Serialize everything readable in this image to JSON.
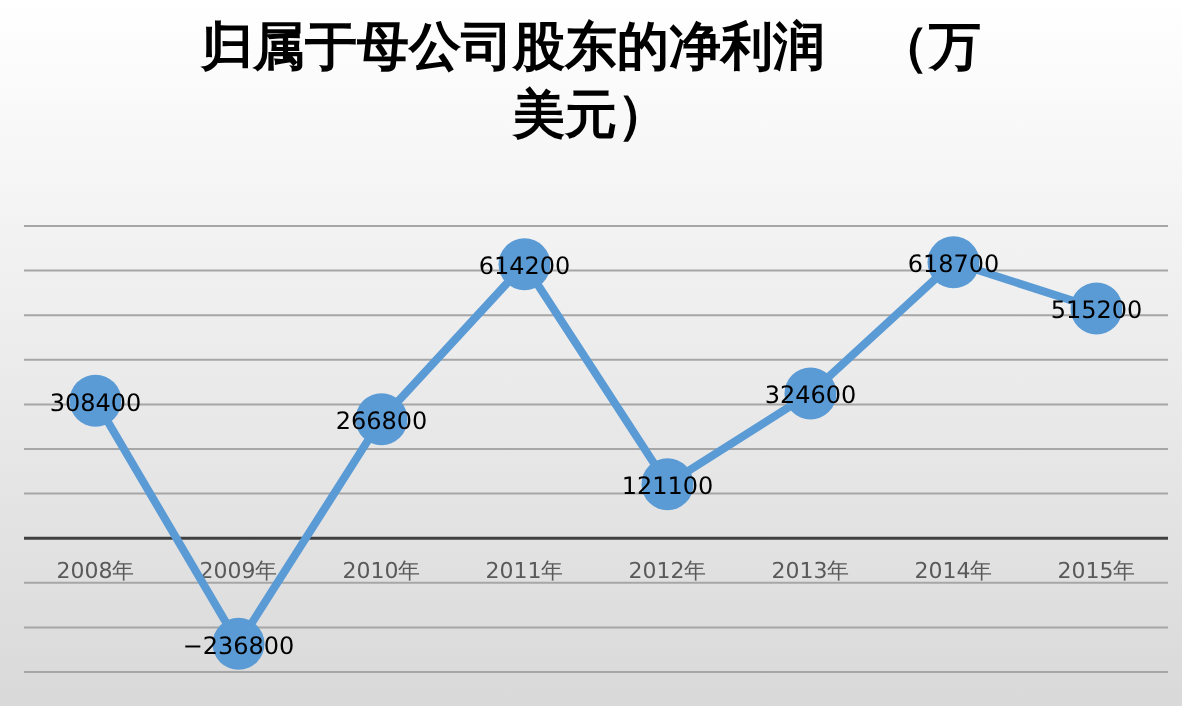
{
  "chart_data": {
    "type": "line",
    "title": "归属于母公司股东的净利润　（万美元）",
    "categories": [
      "2008年",
      "2009年",
      "2010年",
      "2011年",
      "2012年",
      "2013年",
      "2014年",
      "2015年"
    ],
    "series": [
      {
        "color": "#5b9bd5",
        "values": [
          308400,
          -236800,
          266800,
          614200,
          121100,
          324600,
          618700,
          515200
        ]
      }
    ],
    "data_labels": true,
    "marker": "circle",
    "line_style": "solid",
    "grid": "y",
    "tick_labels": "x",
    "ylim": [
      -300000,
      700000
    ],
    "yticks": [
      {
        "value": -300000,
        "label": null
      },
      {
        "value": -200000,
        "label": null
      },
      {
        "value": -100000,
        "label": null
      },
      {
        "value": 0,
        "label": null
      },
      {
        "value": 100000,
        "label": null
      },
      {
        "value": 200000,
        "label": null
      },
      {
        "value": 300000,
        "label": null
      },
      {
        "value": 400000,
        "label": null
      },
      {
        "value": 500000,
        "label": null
      },
      {
        "value": 600000,
        "label": null
      },
      {
        "value": 700000,
        "label": null
      }
    ]
  }
}
